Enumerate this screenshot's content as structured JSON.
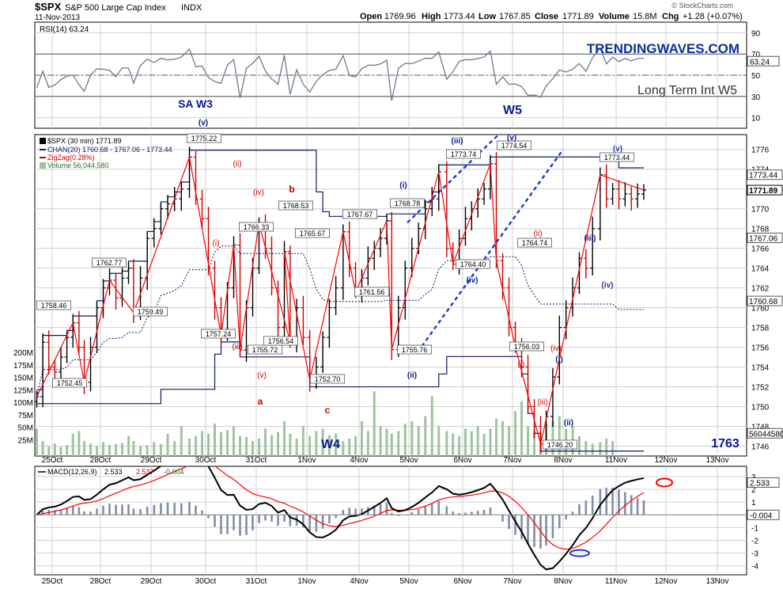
{
  "header": {
    "symbol": "$SPX",
    "name": "S&P 500 Large Cap Index",
    "exchange": "INDX",
    "date": "11-Nov-2013",
    "open_label": "Open",
    "open": "1769.96",
    "high_label": "High",
    "high": "1773.44",
    "low_label": "Low",
    "low": "1767.85",
    "close_label": "Close",
    "close": "1771.89",
    "volume_label": "Volume",
    "volume": "15.8M",
    "chg_label": "Chg",
    "chg": "+1.28 (+0.07%)",
    "credit": "© StockCharts.com"
  },
  "colors": {
    "frame": "#000000",
    "grid": "#d0d0d0",
    "rsi_line": "#6b7a8f",
    "bar_up": "#000000",
    "bar_down": "#cc0000",
    "zigzag": "#ff0000",
    "channel": "#0a1a6e",
    "wave_blue": "#0a1a8e",
    "wave_red": "#cc0000",
    "volume": "#9ec49e",
    "macd": "#000000",
    "signal": "#ff0000",
    "hist": "#7f8fa8",
    "trendlines": "#1a3bd6",
    "brand": "#0a2fa0"
  },
  "rsi_panel": {
    "legend": "RSI(14) 63.24",
    "axis_ticks": [
      "90",
      "70",
      "50",
      "30",
      "10"
    ],
    "last_tag": "63.24",
    "brand": "TRENDINGWAVES.COM",
    "note": "Long Term Int W5"
  },
  "price_panel": {
    "legend_main": "$SPX (30 min) 1771.89",
    "legend_chan": "CHAN(20) 1760.68 - 1767.06 - 1773.44",
    "legend_zigzag": "ZigZag(0.28%)",
    "legend_volume": "Volume 56,044,580",
    "axis_ticks": [
      "1776",
      "1774",
      "1772",
      "1770",
      "1768",
      "1766",
      "1764",
      "1762",
      "1760",
      "1758",
      "1756",
      "1754",
      "1752",
      "1750",
      "1748",
      "1746"
    ],
    "right_tags": [
      "1773.44",
      "1771.89",
      "1767.06",
      "1760.68",
      "56044580"
    ],
    "volume_ticks": [
      "200M",
      "175M",
      "150M",
      "125M",
      "100M",
      "75M",
      "50M",
      "25M"
    ],
    "price_labels": [
      "1775.22",
      "1758.46",
      "1762.77",
      "1759.49",
      "1752.45",
      "1757.24",
      "1766.33",
      "1755.72",
      "1768.53",
      "1765.67",
      "1756.54",
      "1752.70",
      "1767.67",
      "1761.56",
      "1768.78",
      "1755.76",
      "1773.74",
      "1764.40",
      "1774.54",
      "1764.74",
      "1756.03",
      "1746.20",
      "1773.44"
    ],
    "wave_labels_blue": [
      "SA W3",
      "(v)",
      "W4",
      "(i)",
      "(ii)",
      "(iii)",
      "(iv)",
      "(v)",
      "W5",
      "(i)",
      "(ii)",
      "(iii)",
      "(iv)",
      "(v)",
      "1763"
    ],
    "wave_labels_red": [
      "(ii)",
      "(iv)",
      "(i)",
      "(iii)",
      "(v)",
      "a",
      "b",
      "c",
      "(ii)",
      "(iv)",
      "(i)",
      "(iii)"
    ]
  },
  "x_axis_labels": [
    "25Oct",
    "28Oct",
    "29Oct",
    "30Oct",
    "31Oct",
    "1Nov",
    "4Nov",
    "5Nov",
    "6Nov",
    "7Nov",
    "8Nov",
    "11Nov",
    "12Nov",
    "13Nov"
  ],
  "macd_panel": {
    "legend_name": "MACD(12,26,9)",
    "legend_macd": "2.533",
    "legend_signal": "2.537",
    "legend_hist": "-0.004",
    "axis_ticks": [
      "3",
      "2",
      "1",
      "0",
      "-1",
      "-2",
      "-3",
      "-4"
    ],
    "right_tags": [
      "2.533",
      "-0.004"
    ]
  },
  "chart_data": {
    "type": "ohlc",
    "title": "$SPX S&P 500 Large Cap Index INDX",
    "interval": "30 min",
    "session_labels": [
      "25Oct",
      "28Oct",
      "29Oct",
      "30Oct",
      "31Oct",
      "1Nov",
      "4Nov",
      "5Nov",
      "6Nov",
      "7Nov",
      "8Nov",
      "11Nov"
    ],
    "close_path": [
      [
        "25Oct",
        1751
      ],
      [
        "25Oct",
        1756.5
      ],
      [
        "25Oct",
        1754
      ],
      [
        "25Oct",
        1753.5
      ],
      [
        "25Oct",
        1755
      ],
      [
        "25Oct",
        1757
      ],
      [
        "25Oct",
        1758.46
      ],
      [
        "25Oct",
        1756
      ],
      [
        "28Oct",
        1752.45
      ],
      [
        "28Oct",
        1756
      ],
      [
        "28Oct",
        1760
      ],
      [
        "28Oct",
        1762
      ],
      [
        "28Oct",
        1762.77
      ],
      [
        "28Oct",
        1761
      ],
      [
        "28Oct",
        1763
      ],
      [
        "28Oct",
        1764
      ],
      [
        "29Oct",
        1759.49
      ],
      [
        "29Oct",
        1763
      ],
      [
        "29Oct",
        1767
      ],
      [
        "29Oct",
        1768
      ],
      [
        "29Oct",
        1770
      ],
      [
        "29Oct",
        1770.5
      ],
      [
        "29Oct",
        1771
      ],
      [
        "29Oct",
        1772
      ],
      [
        "30Oct",
        1775.22
      ],
      [
        "30Oct",
        1771
      ],
      [
        "30Oct",
        1769
      ],
      [
        "30Oct",
        1764
      ],
      [
        "30Oct",
        1760
      ],
      [
        "30Oct",
        1757.24
      ],
      [
        "30Oct",
        1762
      ],
      [
        "30Oct",
        1766.33
      ],
      [
        "31Oct",
        1755.72
      ],
      [
        "31Oct",
        1760
      ],
      [
        "31Oct",
        1764
      ],
      [
        "31Oct",
        1768.53
      ],
      [
        "31Oct",
        1766
      ],
      [
        "31Oct",
        1762
      ],
      [
        "31Oct",
        1758
      ],
      [
        "31Oct",
        1765.67
      ],
      [
        "1Nov",
        1756.54
      ],
      [
        "1Nov",
        1760
      ],
      [
        "1Nov",
        1757
      ],
      [
        "1Nov",
        1752.7
      ],
      [
        "1Nov",
        1754
      ],
      [
        "1Nov",
        1757
      ],
      [
        "1Nov",
        1760
      ],
      [
        "1Nov",
        1762
      ],
      [
        "4Nov",
        1767.67
      ],
      [
        "4Nov",
        1764
      ],
      [
        "4Nov",
        1761.56
      ],
      [
        "4Nov",
        1763
      ],
      [
        "4Nov",
        1765
      ],
      [
        "4Nov",
        1766
      ],
      [
        "4Nov",
        1767
      ],
      [
        "4Nov",
        1768.78
      ],
      [
        "5Nov",
        1755.76
      ],
      [
        "5Nov",
        1760
      ],
      [
        "5Nov",
        1764
      ],
      [
        "5Nov",
        1766
      ],
      [
        "5Nov",
        1768
      ],
      [
        "5Nov",
        1770
      ],
      [
        "5Nov",
        1771
      ],
      [
        "5Nov",
        1773.74
      ],
      [
        "6Nov",
        1766
      ],
      [
        "6Nov",
        1764.4
      ],
      [
        "6Nov",
        1767
      ],
      [
        "6Nov",
        1769
      ],
      [
        "6Nov",
        1770
      ],
      [
        "6Nov",
        1771
      ],
      [
        "6Nov",
        1772
      ],
      [
        "6Nov",
        1774.54
      ],
      [
        "7Nov",
        1764.74
      ],
      [
        "7Nov",
        1762
      ],
      [
        "7Nov",
        1758
      ],
      [
        "7Nov",
        1756.03
      ],
      [
        "7Nov",
        1754
      ],
      [
        "7Nov",
        1750
      ],
      [
        "7Nov",
        1748
      ],
      [
        "7Nov",
        1746.2
      ],
      [
        "8Nov",
        1749
      ],
      [
        "8Nov",
        1753
      ],
      [
        "8Nov",
        1758
      ],
      [
        "8Nov",
        1760
      ],
      [
        "8Nov",
        1762
      ],
      [
        "8Nov",
        1765
      ],
      [
        "8Nov",
        1764
      ],
      [
        "8Nov",
        1768
      ],
      [
        "11Nov",
        1773.44
      ],
      [
        "11Nov",
        1771
      ],
      [
        "11Nov",
        1772
      ],
      [
        "11Nov",
        1771
      ],
      [
        "11Nov",
        1771.5
      ],
      [
        "11Nov",
        1771
      ],
      [
        "11Nov",
        1771.5
      ],
      [
        "11Nov",
        1771.89
      ]
    ],
    "zigzag_pivots": [
      1751,
      1758.46,
      1752.45,
      1762.77,
      1759.49,
      1775.22,
      1757.24,
      1766.33,
      1755.72,
      1768.53,
      1756.54,
      1765.67,
      1752.7,
      1767.67,
      1761.56,
      1768.78,
      1755.76,
      1773.74,
      1764.4,
      1774.54,
      1764.74,
      1756.03,
      1746.2,
      1773.44,
      1771.89
    ],
    "volume_millions": [
      55,
      30,
      20,
      25,
      18,
      22,
      45,
      50,
      30,
      25,
      20,
      28,
      22,
      24,
      26,
      40,
      30,
      20,
      22,
      28,
      24,
      45,
      30,
      60,
      35,
      40,
      50,
      45,
      65,
      48,
      52,
      60,
      40,
      38,
      30,
      35,
      55,
      42,
      48,
      70,
      45,
      35,
      60,
      40,
      50,
      55,
      42,
      45,
      30,
      35,
      40,
      70,
      50,
      130,
      60,
      55,
      45,
      50,
      65,
      70,
      60,
      80,
      120,
      60,
      50,
      45,
      40,
      55,
      50,
      60,
      45,
      55,
      75,
      70,
      60,
      90,
      110,
      60,
      50,
      45,
      65,
      70,
      80,
      55,
      60,
      40,
      30,
      25,
      28,
      35,
      30
    ],
    "macd": {
      "macd": 2.533,
      "signal": 2.537,
      "histogram": -0.004
    },
    "channel": {
      "lower": 1760.68,
      "mid": 1767.06,
      "upper": 1773.44
    },
    "rsi": 63.24,
    "ylim_price": [
      1745,
      1777.5
    ],
    "ylim_rsi": [
      0,
      100
    ],
    "ylim_macd": [
      -4.7,
      3.8
    ]
  }
}
